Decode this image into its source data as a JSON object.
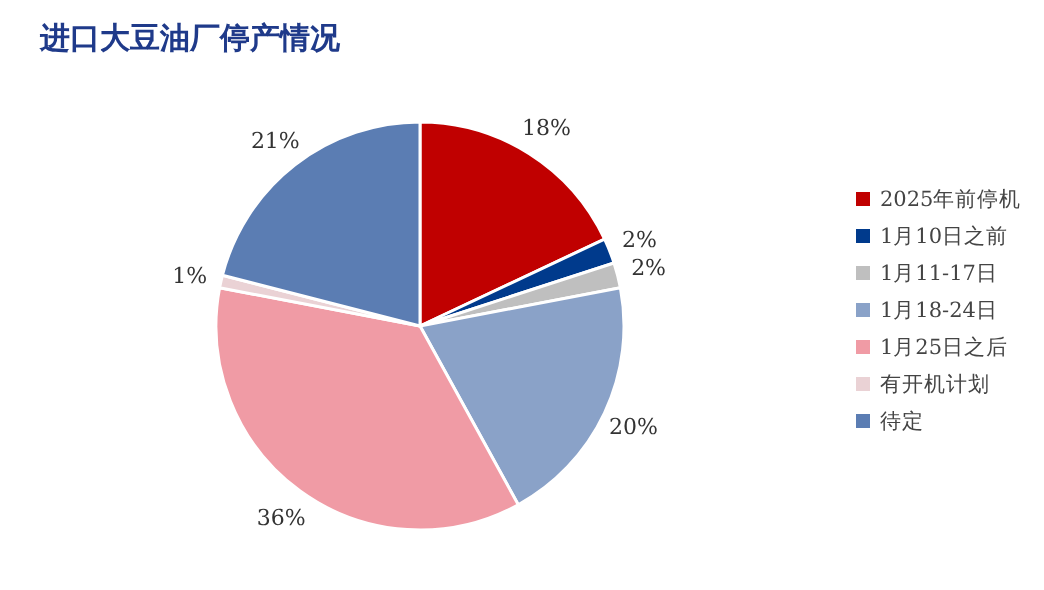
{
  "chart_data": {
    "type": "pie",
    "title": "进口大豆油厂停产情况",
    "categories": [
      "2025年前停机",
      "1月10日之前",
      "1月11-17日",
      "1月18-24日",
      "1月25日之后",
      "有开机计划",
      "待定"
    ],
    "values": [
      18,
      2,
      2,
      20,
      36,
      1,
      21
    ],
    "value_labels": [
      "18%",
      "2%",
      "2%",
      "20%",
      "36%",
      "1%",
      "21%"
    ],
    "colors": [
      "#c00000",
      "#003a8c",
      "#bfbfbf",
      "#8aa2c8",
      "#f09ba5",
      "#ead2d5",
      "#5b7db3"
    ],
    "legend": "right"
  }
}
